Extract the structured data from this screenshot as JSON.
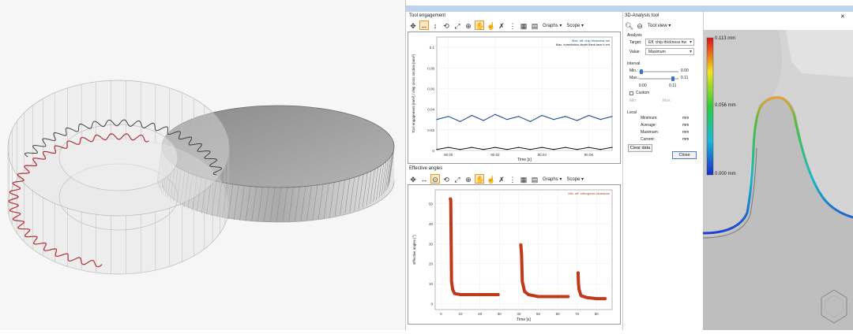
{
  "tool_engagement": {
    "title": "Tool engagement",
    "graphs_menu": "Graphs",
    "scope_menu": "Scope",
    "ylabel": "Tool engagement [mm²] / chip cross section [mm²]",
    "xlabel": "Time [s]",
    "legend": [
      "Max. eff. chip thickness hel",
      "Max. indentation depth flank face k ext"
    ]
  },
  "effective_angles": {
    "title": "Effective angles",
    "graphs_menu": "Graphs",
    "scope_menu": "Scope",
    "ylabel": "Effective angles [°]",
    "xlabel": "Time [s]",
    "legend": [
      "Min. eff. orthogonal clearance"
    ]
  },
  "analysis_tool": {
    "title": "3D-Analysis tool",
    "tool_view": "Tool view",
    "analysis_header": "Analysis",
    "target_label": "Target:",
    "target_value": "Eff. chip thickness hw",
    "value_label": "Value:",
    "value_value": "Maximum",
    "interval_header": "Interval",
    "min_label": "Min.:",
    "min_value": "0.00",
    "max_label": "Max.:",
    "max_value": "0.11",
    "slider_min_tick": "0.00",
    "slider_max_tick": "0.11",
    "custom_label": "Custom",
    "custom_min": "Min:",
    "custom_max": "Max:",
    "local_header": "Local",
    "rows": [
      {
        "label": "Minimum:",
        "unit": "mm"
      },
      {
        "label": "Average:",
        "unit": "mm"
      },
      {
        "label": "Maximum:",
        "unit": "mm"
      },
      {
        "label": "Current:",
        "unit": "mm"
      }
    ],
    "clear_button": "Clear data",
    "close_button": "Close"
  },
  "colorscale": {
    "top": "0.113 mm",
    "mid": "0.056 mm",
    "bottom": "0.000 mm"
  },
  "chart_data": [
    {
      "type": "line",
      "title": "Tool engagement",
      "xlabel": "Time [s]",
      "ylabel": "Tool engagement [mm²] / chip cross section [mm²]",
      "x_ticks": [
        "80.00",
        "80.02",
        "80.04",
        "80.06"
      ],
      "y_ticks": [
        "0",
        "0.02",
        "0.04",
        "0.06",
        "0.08",
        "0.1"
      ],
      "ylim": [
        0,
        0.11
      ],
      "series": [
        {
          "name": "Max. eff. chip thickness hel",
          "color": "#1f4e96",
          "x": [
            79.995,
            80.0,
            80.005,
            80.01,
            80.015,
            80.02,
            80.025,
            80.03,
            80.035,
            80.04,
            80.045,
            80.05,
            80.055,
            80.06,
            80.065,
            80.07
          ],
          "values": [
            0.03,
            0.033,
            0.028,
            0.034,
            0.029,
            0.035,
            0.03,
            0.033,
            0.028,
            0.034,
            0.03,
            0.033,
            0.029,
            0.034,
            0.03,
            0.033
          ]
        },
        {
          "name": "Max. indentation depth flank face k ext",
          "color": "#111111",
          "x": [
            79.995,
            80.0,
            80.005,
            80.01,
            80.015,
            80.02,
            80.025,
            80.03,
            80.035,
            80.04,
            80.045,
            80.05,
            80.055,
            80.06,
            80.065,
            80.07
          ],
          "values": [
            0.001,
            0.003,
            0.001,
            0.003,
            0.001,
            0.003,
            0.001,
            0.003,
            0.001,
            0.003,
            0.001,
            0.003,
            0.001,
            0.003,
            0.001,
            0.003
          ]
        }
      ]
    },
    {
      "type": "line",
      "title": "Effective angles",
      "xlabel": "Time [s]",
      "ylabel": "Effective angles [°]",
      "x_ticks": [
        "0",
        "10",
        "20",
        "30",
        "40",
        "50",
        "60",
        "70",
        "80"
      ],
      "y_ticks": [
        "0",
        "10",
        "20",
        "30",
        "40",
        "50"
      ],
      "xlim": [
        -3,
        88
      ],
      "ylim": [
        -3,
        57
      ],
      "series": [
        {
          "name": "Min. eff. orthogonal clearance",
          "color": "#c0391b",
          "x": [
            4.6,
            5,
            5.4,
            6,
            7,
            10,
            20,
            30,
            41,
            41.4,
            41.8,
            43,
            45,
            50,
            60,
            66,
            70.5,
            70.7,
            71,
            72,
            75,
            80,
            85
          ],
          "values": [
            53,
            52,
            11,
            7,
            5,
            4.5,
            4.5,
            4.5,
            30,
            25,
            11,
            6,
            4.5,
            3.5,
            3.5,
            3.5,
            16,
            10,
            7,
            4,
            3,
            2.5,
            2.5
          ]
        }
      ]
    }
  ]
}
